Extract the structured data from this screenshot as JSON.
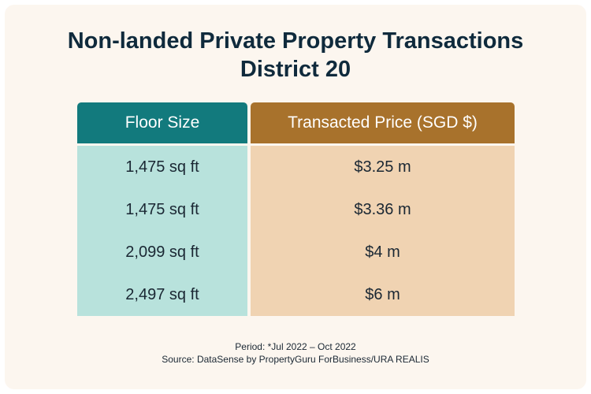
{
  "title": {
    "line1": "Non-landed Private Property Transactions",
    "line2": "District 20"
  },
  "table": {
    "headers": [
      "Floor Size",
      "Transacted Price (SGD $)"
    ],
    "rows": [
      [
        "1,475 sq ft",
        "$3.25 m"
      ],
      [
        "1,475 sq ft",
        "$3.36 m"
      ],
      [
        "2,099 sq ft",
        "$4 m"
      ],
      [
        "2,497 sq ft",
        "$6 m"
      ]
    ]
  },
  "footer": {
    "period": "Period: *Jul 2022 – Oct 2022",
    "source": "Source: DataSense by PropertyGuru ForBusiness/URA REALIS"
  },
  "colors": {
    "title": "#0f2a3c",
    "floor_header": "#127a7d",
    "price_header": "#a8722c",
    "floor_cells": "#b8e2dc",
    "price_cells": "#f0d3b2",
    "background": "#fcf6ef"
  }
}
